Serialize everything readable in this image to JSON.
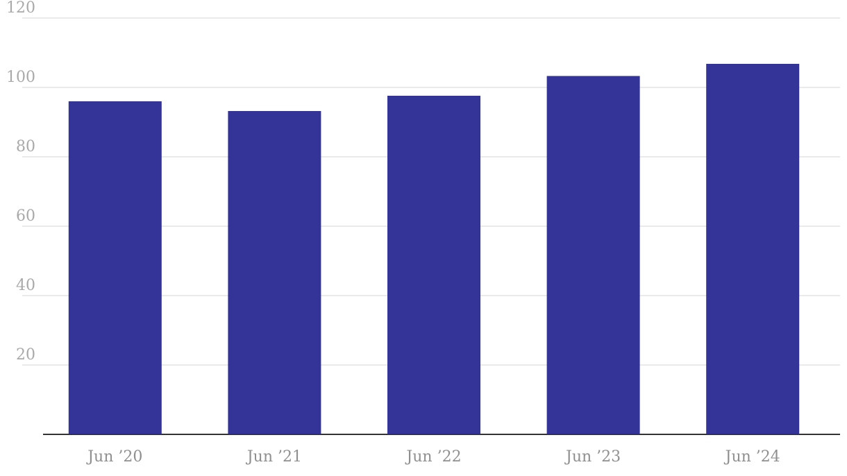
{
  "chart_data": {
    "type": "bar",
    "title": "",
    "xlabel": "",
    "ylabel": "",
    "categories": [
      "Jun ’20",
      "Jun ’21",
      "Jun ’22",
      "Jun ’23",
      "Jun ’24"
    ],
    "values": [
      96,
      93.2,
      97.6,
      103.3,
      106.8
    ],
    "ylim": [
      0,
      120
    ],
    "yticks": [
      20,
      40,
      60,
      80,
      100,
      120
    ],
    "ytick_labels": [
      "20",
      "40",
      "60",
      "80",
      "100",
      "120"
    ],
    "grid": true,
    "legend": "none",
    "colors": {
      "bar": "#343397",
      "grid": "#e3e3e3",
      "axis": "#333333",
      "tick_text": "#a9a9a9"
    }
  }
}
